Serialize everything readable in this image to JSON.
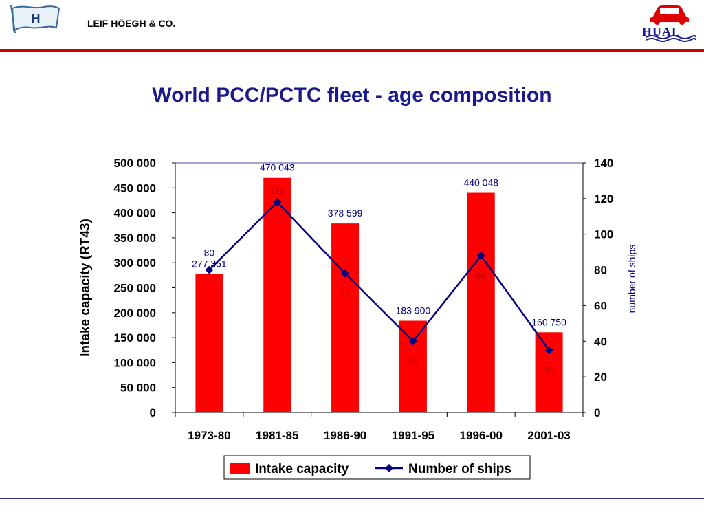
{
  "header": {
    "company_name": "LEIF HÖEGH & CO.",
    "left_logo_letter": "H",
    "right_logo_text": "HUAL"
  },
  "colors": {
    "title": "#1a1a8c",
    "bar": "#ff0000",
    "line": "#000080",
    "accent_rule": "#cc0000"
  },
  "chart_data": {
    "type": "bar",
    "title": "World PCC/PCTC fleet - age composition",
    "categories": [
      "1973-80",
      "1981-85",
      "1986-90",
      "1991-95",
      "1996-00",
      "2001-03"
    ],
    "series": [
      {
        "name": "Intake capacity",
        "type": "bar",
        "axis": "left",
        "values": [
          277351,
          470043,
          378599,
          183900,
          440048,
          160750
        ],
        "labels": [
          "277 351",
          "470 043",
          "378 599",
          "183 900",
          "440 048",
          "160 750"
        ]
      },
      {
        "name": "Number of ships",
        "type": "line",
        "axis": "right",
        "values": [
          80,
          118,
          78,
          40,
          88,
          35
        ],
        "labels": [
          "80",
          "118",
          "78",
          "40",
          "88",
          "35"
        ]
      }
    ],
    "ylabel_left": "Intake capacity (RT43)",
    "ylabel_right": "number of ships",
    "ylim_left": [
      0,
      500000
    ],
    "ylim_right": [
      0,
      140
    ],
    "left_ticks": [
      "0",
      "50 000",
      "100 000",
      "150 000",
      "200 000",
      "250 000",
      "300 000",
      "350 000",
      "400 000",
      "450 000",
      "500 000"
    ],
    "right_ticks": [
      "0",
      "20",
      "40",
      "60",
      "80",
      "100",
      "120",
      "140"
    ],
    "grid": false,
    "legend_position": "bottom"
  }
}
